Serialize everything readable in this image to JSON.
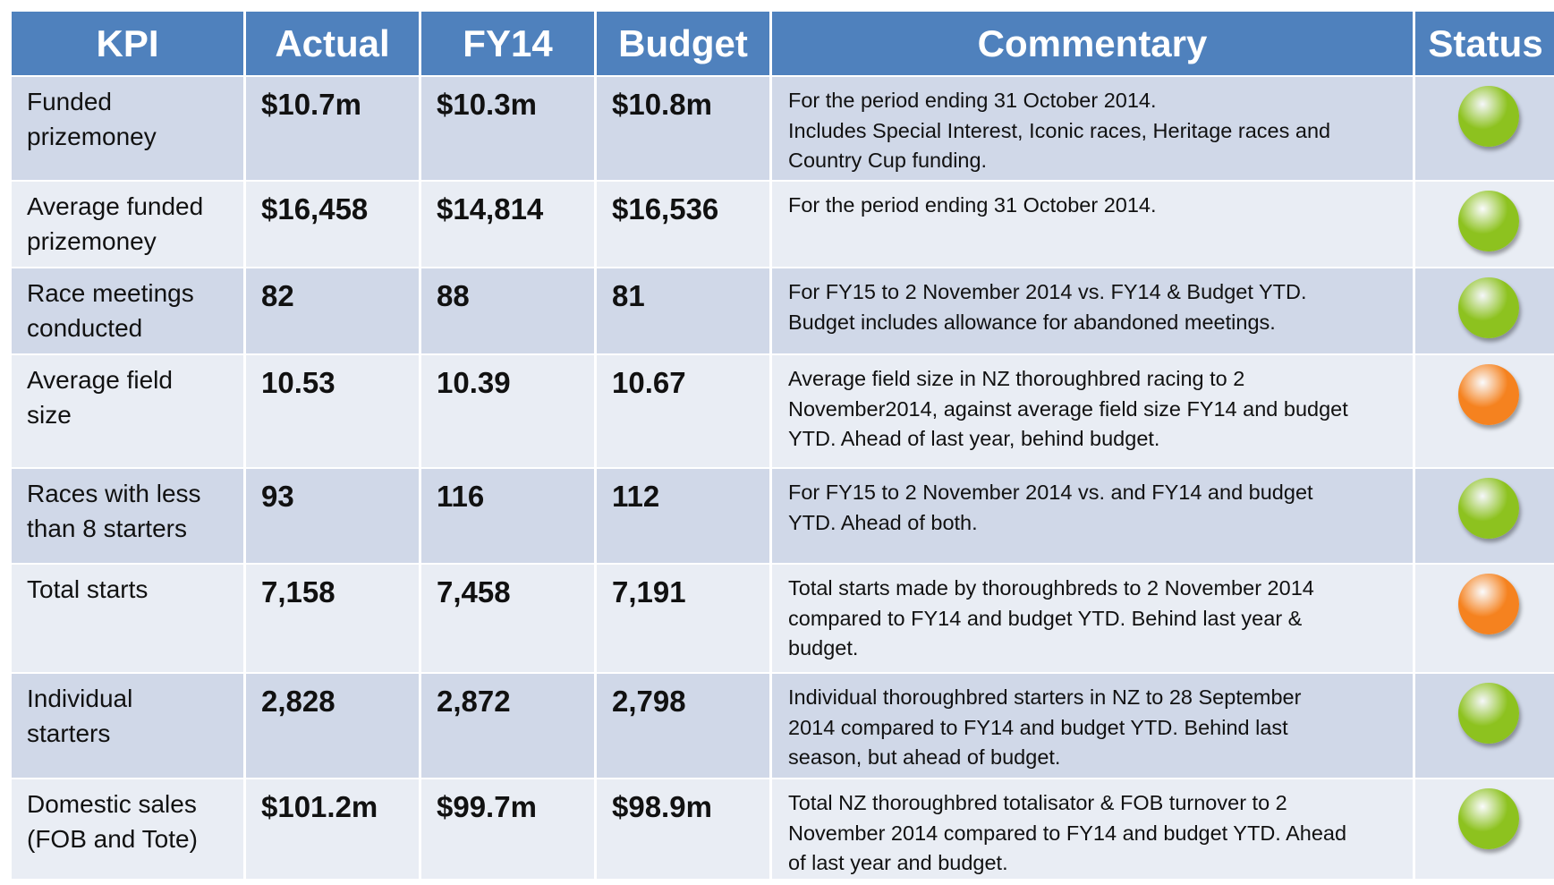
{
  "table": {
    "header": [
      "KPI",
      "Actual",
      "FY14",
      "Budget",
      "Commentary",
      "Status"
    ],
    "rows": [
      [
        "Funded\nprizemoney",
        "$10.7m",
        "$10.3m",
        "$10.8m",
        "For the period ending 31 October 2014.\nIncludes Special Interest, Iconic races, Heritage races and\nCountry Cup  funding."
      ],
      [
        "Average funded\nprizemoney",
        "$16,458",
        "$14,814",
        "$16,536",
        "For the period ending 31 October 2014."
      ],
      [
        "Race meetings\nconducted",
        "82",
        "88",
        "81",
        "For FY15 to 2 November 2014 vs. FY14 & Budget YTD.\nBudget includes allowance for abandoned meetings."
      ],
      [
        "Average field\nsize",
        "10.53",
        "10.39",
        "10.67",
        "Average field size in NZ thoroughbred racing to 2\nNovember2014, against average field size FY14 and budget\nYTD.  Ahead of last year, behind budget."
      ],
      [
        "Races with less\nthan 8 starters",
        "93",
        "116",
        "112",
        "For FY15 to 2 November 2014 vs. and FY14 and budget\nYTD.  Ahead of both."
      ],
      [
        "Total starts",
        "7,158",
        "7,458",
        "7,191",
        "Total starts made by thoroughbreds to 2 November 2014\ncompared to FY14 and budget YTD. Behind last year &\nbudget."
      ],
      [
        "Individual\nstarters",
        "2,828",
        "2,872",
        "2,798",
        "Individual thoroughbred starters in NZ to 28 September\n2014 compared to FY14  and budget YTD. Behind last\nseason, but ahead of budget."
      ],
      [
        "Domestic sales\n(FOB and Tote)",
        "$101.2m",
        "$99.7m",
        "$98.9m",
        "Total NZ thoroughbred totalisator & FOB turnover to 2\nNovember 2014 compared to FY14 and budget YTD. Ahead\nof last year and budget."
      ]
    ],
    "status_colors": [
      "#8dc21f",
      "#8dc21f",
      "#8dc21f",
      "#f5821f",
      "#8dc21f",
      "#f5821f",
      "#8dc21f",
      "#8dc21f"
    ]
  }
}
